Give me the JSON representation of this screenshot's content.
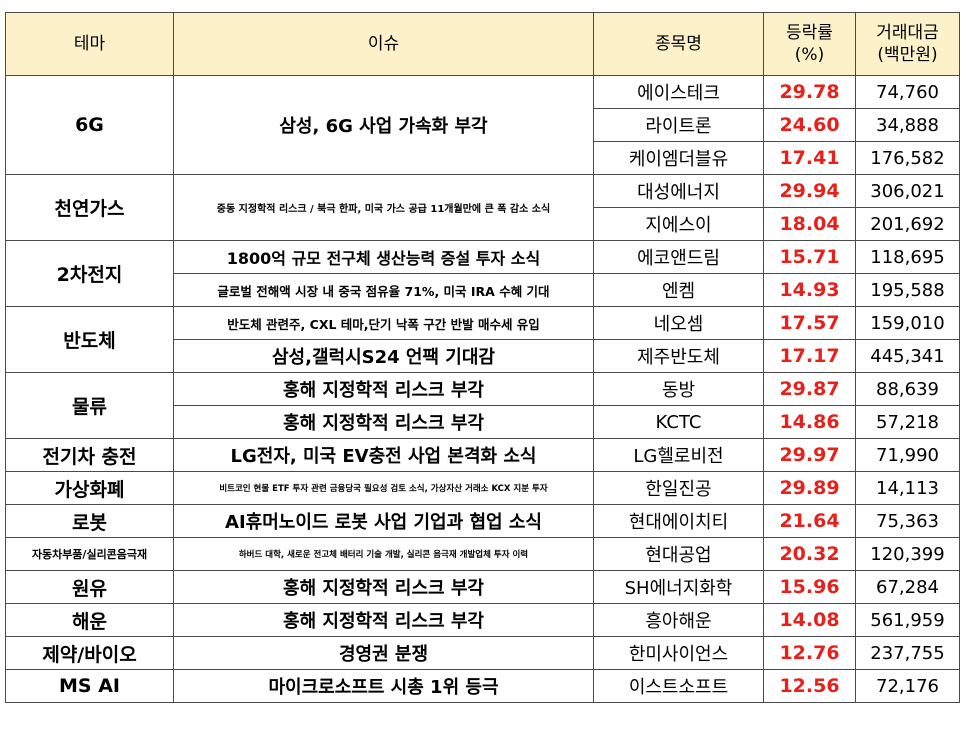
{
  "headers": {
    "theme": "테마",
    "issue": "이슈",
    "stock": "종목명",
    "pct_line1": "등락률",
    "pct_line2": "(%)",
    "amt_line1": "거래대금",
    "amt_line2": "(백만원)"
  },
  "themes": [
    {
      "name": "6G",
      "issues": [
        {
          "text": "삼성, 6G 사업 가속화 부각",
          "stocks": [
            {
              "name": "에이스테크",
              "pct": "29.78",
              "amt": "74,760"
            },
            {
              "name": "라이트론",
              "pct": "24.60",
              "amt": "34,888"
            },
            {
              "name": "케이엠더블유",
              "pct": "17.41",
              "amt": "176,582"
            }
          ]
        }
      ]
    },
    {
      "name": "천연가스",
      "issues": [
        {
          "text": "중동 지정학적 리스크 / 북극 한파, 미국 가스 공급 11개월만에 큰 폭 감소 소식",
          "stocks": [
            {
              "name": "대성에너지",
              "pct": "29.94",
              "amt": "306,021"
            },
            {
              "name": "지에스이",
              "pct": "18.04",
              "amt": "201,692"
            }
          ]
        }
      ]
    },
    {
      "name": "2차전지",
      "issues": [
        {
          "text": "1800억 규모 전구체 생산능력 증설 투자 소식",
          "stocks": [
            {
              "name": "에코앤드림",
              "pct": "15.71",
              "amt": "118,695"
            }
          ]
        },
        {
          "text": "글로벌 전해액 시장 내 중국 점유율 71%, 미국 IRA 수혜 기대",
          "stocks": [
            {
              "name": "엔켐",
              "pct": "14.93",
              "amt": "195,588"
            }
          ]
        }
      ]
    },
    {
      "name": "반도체",
      "issues": [
        {
          "text": "반도체 관련주, CXL 테마,단기 낙폭 구간 반발 매수세 유입",
          "stocks": [
            {
              "name": "네오셈",
              "pct": "17.57",
              "amt": "159,010"
            }
          ]
        },
        {
          "text": "삼성,갤럭시S24 언팩 기대감",
          "stocks": [
            {
              "name": "제주반도체",
              "pct": "17.17",
              "amt": "445,341"
            }
          ]
        }
      ]
    },
    {
      "name": "물류",
      "issues": [
        {
          "text": "홍해 지정학적 리스크 부각",
          "stocks": [
            {
              "name": "동방",
              "pct": "29.87",
              "amt": "88,639"
            }
          ]
        },
        {
          "text": "홍해 지정학적 리스크 부각",
          "stocks": [
            {
              "name": "KCTC",
              "pct": "14.86",
              "amt": "57,218"
            }
          ]
        }
      ]
    },
    {
      "name": "전기차 충전",
      "issues": [
        {
          "text": "LG전자, 미국 EV충전 사업 본격화 소식",
          "stocks": [
            {
              "name": "LG헬로비전",
              "pct": "29.97",
              "amt": "71,990"
            }
          ]
        }
      ]
    },
    {
      "name": "가상화폐",
      "issues": [
        {
          "text": "비트코인 현물 ETF 투자 관련 금융당국 필요성 검토 소식, 가상자산 거래소 KCX 지분 투자",
          "stocks": [
            {
              "name": "한일진공",
              "pct": "29.89",
              "amt": "14,113"
            }
          ]
        }
      ]
    },
    {
      "name": "로봇",
      "issues": [
        {
          "text": "AI휴머노이드 로봇 사업 기업과 협업 소식",
          "stocks": [
            {
              "name": "현대에이치티",
              "pct": "21.64",
              "amt": "75,363"
            }
          ]
        }
      ]
    },
    {
      "name": "자동차부품/실리콘음극재",
      "issues": [
        {
          "text": "하버드 대학, 새로운 전고체 배터리 기술 개발, 실리콘 음극재 개발업체 투자 이력",
          "stocks": [
            {
              "name": "현대공업",
              "pct": "20.32",
              "amt": "120,399"
            }
          ]
        }
      ]
    },
    {
      "name": "원유",
      "issues": [
        {
          "text": "홍해 지정학적 리스크 부각",
          "stocks": [
            {
              "name": "SH에너지화학",
              "pct": "15.96",
              "amt": "67,284"
            }
          ]
        }
      ]
    },
    {
      "name": "해운",
      "issues": [
        {
          "text": "홍해 지정학적 리스크 부각",
          "stocks": [
            {
              "name": "흥아해운",
              "pct": "14.08",
              "amt": "561,959"
            }
          ]
        }
      ]
    },
    {
      "name": "제약/바이오",
      "issues": [
        {
          "text": "경영권 분쟁",
          "stocks": [
            {
              "name": "한미사이언스",
              "pct": "12.76",
              "amt": "237,755"
            }
          ]
        }
      ]
    },
    {
      "name": "MS AI",
      "issues": [
        {
          "text": "마이크로소프트 시총 1위 등극",
          "stocks": [
            {
              "name": "이스트소프트",
              "pct": "12.56",
              "amt": "72,176"
            }
          ]
        }
      ]
    }
  ]
}
